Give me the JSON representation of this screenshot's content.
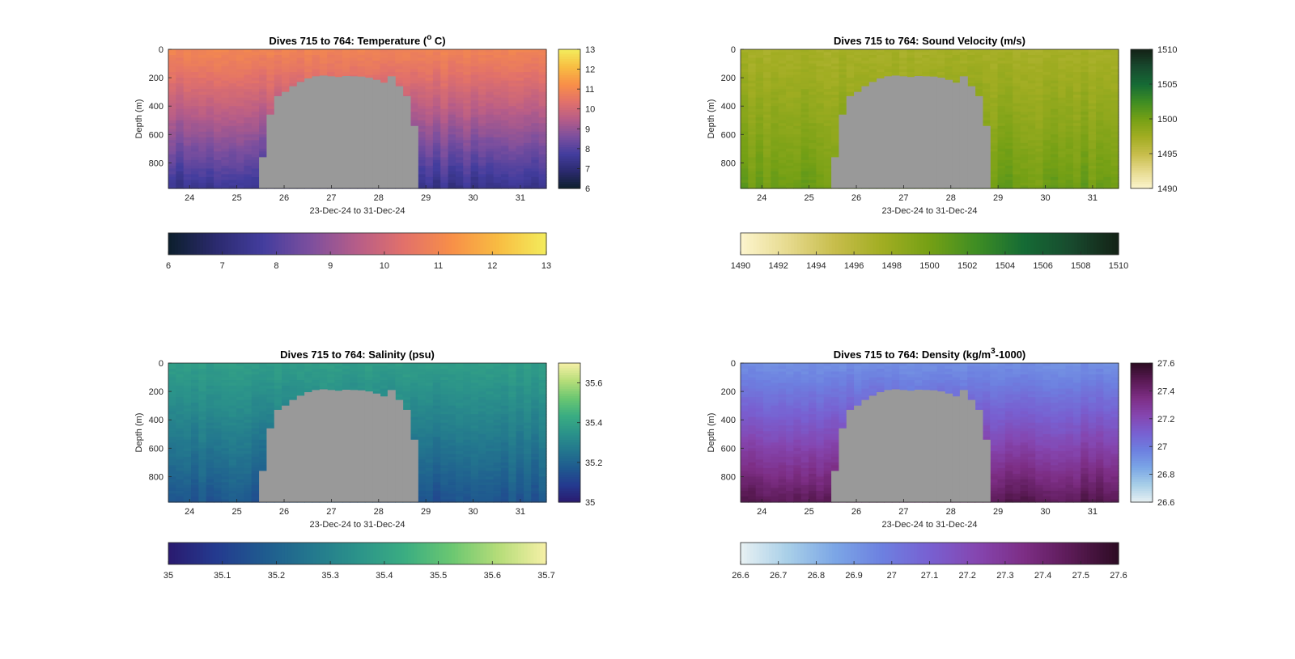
{
  "figure": {
    "background": "#ffffff"
  },
  "chart_data": [
    {
      "type": "heatmap",
      "id": "temperature",
      "title_main": "Dives 715 to 764: Temperature (",
      "title_sup": "o",
      "title_tail": " C)",
      "xlabel": "23-Dec-24 to 31-Dec-24",
      "ylabel": "Depth (m)",
      "xticks": [
        "24",
        "25",
        "26",
        "27",
        "28",
        "29",
        "30",
        "31"
      ],
      "xlim": [
        23.55,
        31.55
      ],
      "yticks": [
        "0",
        "200",
        "400",
        "600",
        "800"
      ],
      "ylim": [
        0,
        980
      ],
      "y_reversed": true,
      "clim": [
        6,
        13
      ],
      "cbar_vert_ticks": [
        "6",
        "7",
        "8",
        "9",
        "10",
        "11",
        "12",
        "13"
      ],
      "cbar_horiz_ticks": [
        "6",
        "7",
        "8",
        "9",
        "10",
        "11",
        "12",
        "13"
      ],
      "colormap": [
        "#0c1f2c",
        "#2b2a6e",
        "#433d9e",
        "#7c4f9e",
        "#b75d88",
        "#e2716a",
        "#f88f48",
        "#f8bd42",
        "#f3ec5c"
      ],
      "surface_value": 10.9,
      "deep_value": 7.4,
      "nodata_color": "#999999"
    },
    {
      "type": "heatmap",
      "id": "sound-velocity",
      "title_main": "Dives 715 to 764: Sound Velocity (m/s)",
      "title_sup": "",
      "title_tail": "",
      "xlabel": "23-Dec-24 to 31-Dec-24",
      "ylabel": "Depth (m)",
      "xticks": [
        "24",
        "25",
        "26",
        "27",
        "28",
        "29",
        "30",
        "31"
      ],
      "xlim": [
        23.55,
        31.55
      ],
      "yticks": [
        "0",
        "200",
        "400",
        "600",
        "800"
      ],
      "ylim": [
        0,
        980
      ],
      "y_reversed": true,
      "clim": [
        1490,
        1510
      ],
      "cbar_vert_ticks": [
        "1490",
        "1495",
        "1500",
        "1505",
        "1510"
      ],
      "cbar_horiz_ticks": [
        "1490",
        "1492",
        "1494",
        "1496",
        "1498",
        "1500",
        "1502",
        "1504",
        "1506",
        "1508",
        "1510"
      ],
      "colormap": [
        "#fdf5ce",
        "#e6da8e",
        "#c7bd4b",
        "#a1ad22",
        "#75a015",
        "#3e8d23",
        "#156b35",
        "#184a2e",
        "#142216"
      ],
      "surface_value": 1497.2,
      "deep_value": 1500.5,
      "nodata_color": "#999999"
    },
    {
      "type": "heatmap",
      "id": "salinity",
      "title_main": "Dives 715 to 764: Salinity (psu)",
      "title_sup": "",
      "title_tail": "",
      "xlabel": "23-Dec-24 to 31-Dec-24",
      "ylabel": "Depth (m)",
      "xticks": [
        "24",
        "25",
        "26",
        "27",
        "28",
        "29",
        "30",
        "31"
      ],
      "xlim": [
        23.55,
        31.55
      ],
      "yticks": [
        "0",
        "200",
        "400",
        "600",
        "800"
      ],
      "ylim": [
        0,
        980
      ],
      "y_reversed": true,
      "clim": [
        35,
        35.7
      ],
      "cbar_vert_ticks": [
        "35",
        "35.2",
        "35.4",
        "35.6"
      ],
      "cbar_vert_values": [
        35,
        35.2,
        35.4,
        35.6
      ],
      "cbar_horiz_ticks": [
        "35",
        "35.1",
        "35.2",
        "35.3",
        "35.4",
        "35.5",
        "35.6",
        "35.7"
      ],
      "colormap": [
        "#2a1a6f",
        "#243a8f",
        "#1f5a8f",
        "#23778e",
        "#2b938a",
        "#3aad82",
        "#6bc771",
        "#b6dd79",
        "#f6f0a6"
      ],
      "surface_value": 35.38,
      "deep_value": 35.16,
      "nodata_color": "#999999"
    },
    {
      "type": "heatmap",
      "id": "density",
      "title_main": "Dives 715 to 764: Density (kg/m",
      "title_sup": "3",
      "title_tail": "-1000)",
      "xlabel": "23-Dec-24 to 31-Dec-24",
      "ylabel": "Depth (m)",
      "xticks": [
        "24",
        "25",
        "26",
        "27",
        "28",
        "29",
        "30",
        "31"
      ],
      "xlim": [
        23.55,
        31.55
      ],
      "yticks": [
        "0",
        "200",
        "400",
        "600",
        "800"
      ],
      "ylim": [
        0,
        980
      ],
      "y_reversed": true,
      "clim": [
        26.6,
        27.6
      ],
      "cbar_vert_ticks": [
        "26.6",
        "26.8",
        "27",
        "27.2",
        "27.4",
        "27.6"
      ],
      "cbar_horiz_ticks": [
        "26.6",
        "26.7",
        "26.8",
        "26.9",
        "27",
        "27.1",
        "27.2",
        "27.3",
        "27.4",
        "27.5",
        "27.6"
      ],
      "colormap": [
        "#e8f1f3",
        "#a8cfe8",
        "#7ba6e6",
        "#6d80e0",
        "#7860d1",
        "#8546b0",
        "#7d2e85",
        "#5a1a55",
        "#2d0c23"
      ],
      "surface_value": 26.93,
      "deep_value": 27.48,
      "nodata_color": "#999999"
    }
  ]
}
